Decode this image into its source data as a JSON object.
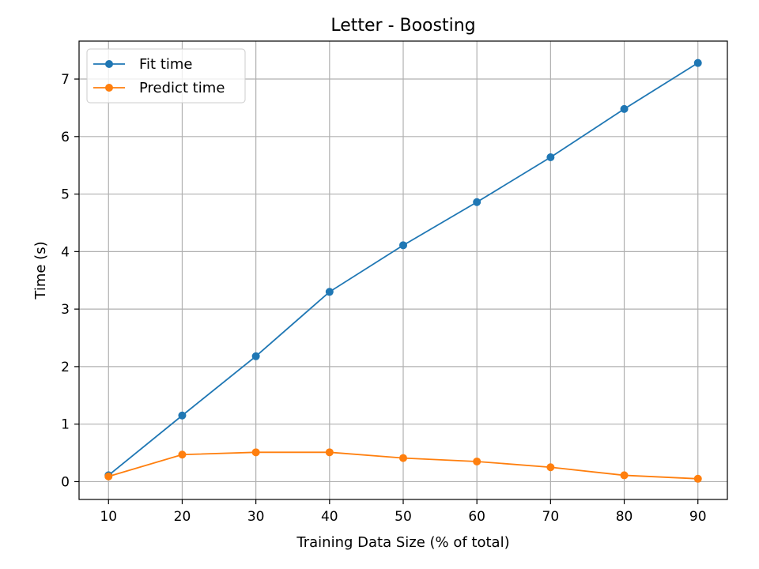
{
  "chart_data": {
    "type": "line",
    "title": "Letter - Boosting",
    "xlabel": "Training Data Size (% of total)",
    "ylabel": "Time (s)",
    "x": [
      10,
      20,
      30,
      40,
      50,
      60,
      70,
      80,
      90
    ],
    "series": [
      {
        "name": "Fit time",
        "color": "#1f77b4",
        "values": [
          0.11,
          1.15,
          2.18,
          3.3,
          4.11,
          4.86,
          5.64,
          6.48,
          7.28
        ]
      },
      {
        "name": "Predict time",
        "color": "#ff7f0e",
        "values": [
          0.09,
          0.47,
          0.51,
          0.51,
          0.41,
          0.35,
          0.25,
          0.11,
          0.05
        ]
      }
    ],
    "xlim": [
      6,
      94
    ],
    "ylim": [
      -0.31,
      7.66
    ],
    "xticks": [
      10,
      20,
      30,
      40,
      50,
      60,
      70,
      80,
      90
    ],
    "yticks": [
      0,
      1,
      2,
      3,
      4,
      5,
      6,
      7
    ],
    "grid": true,
    "legend_position": "top-left"
  }
}
